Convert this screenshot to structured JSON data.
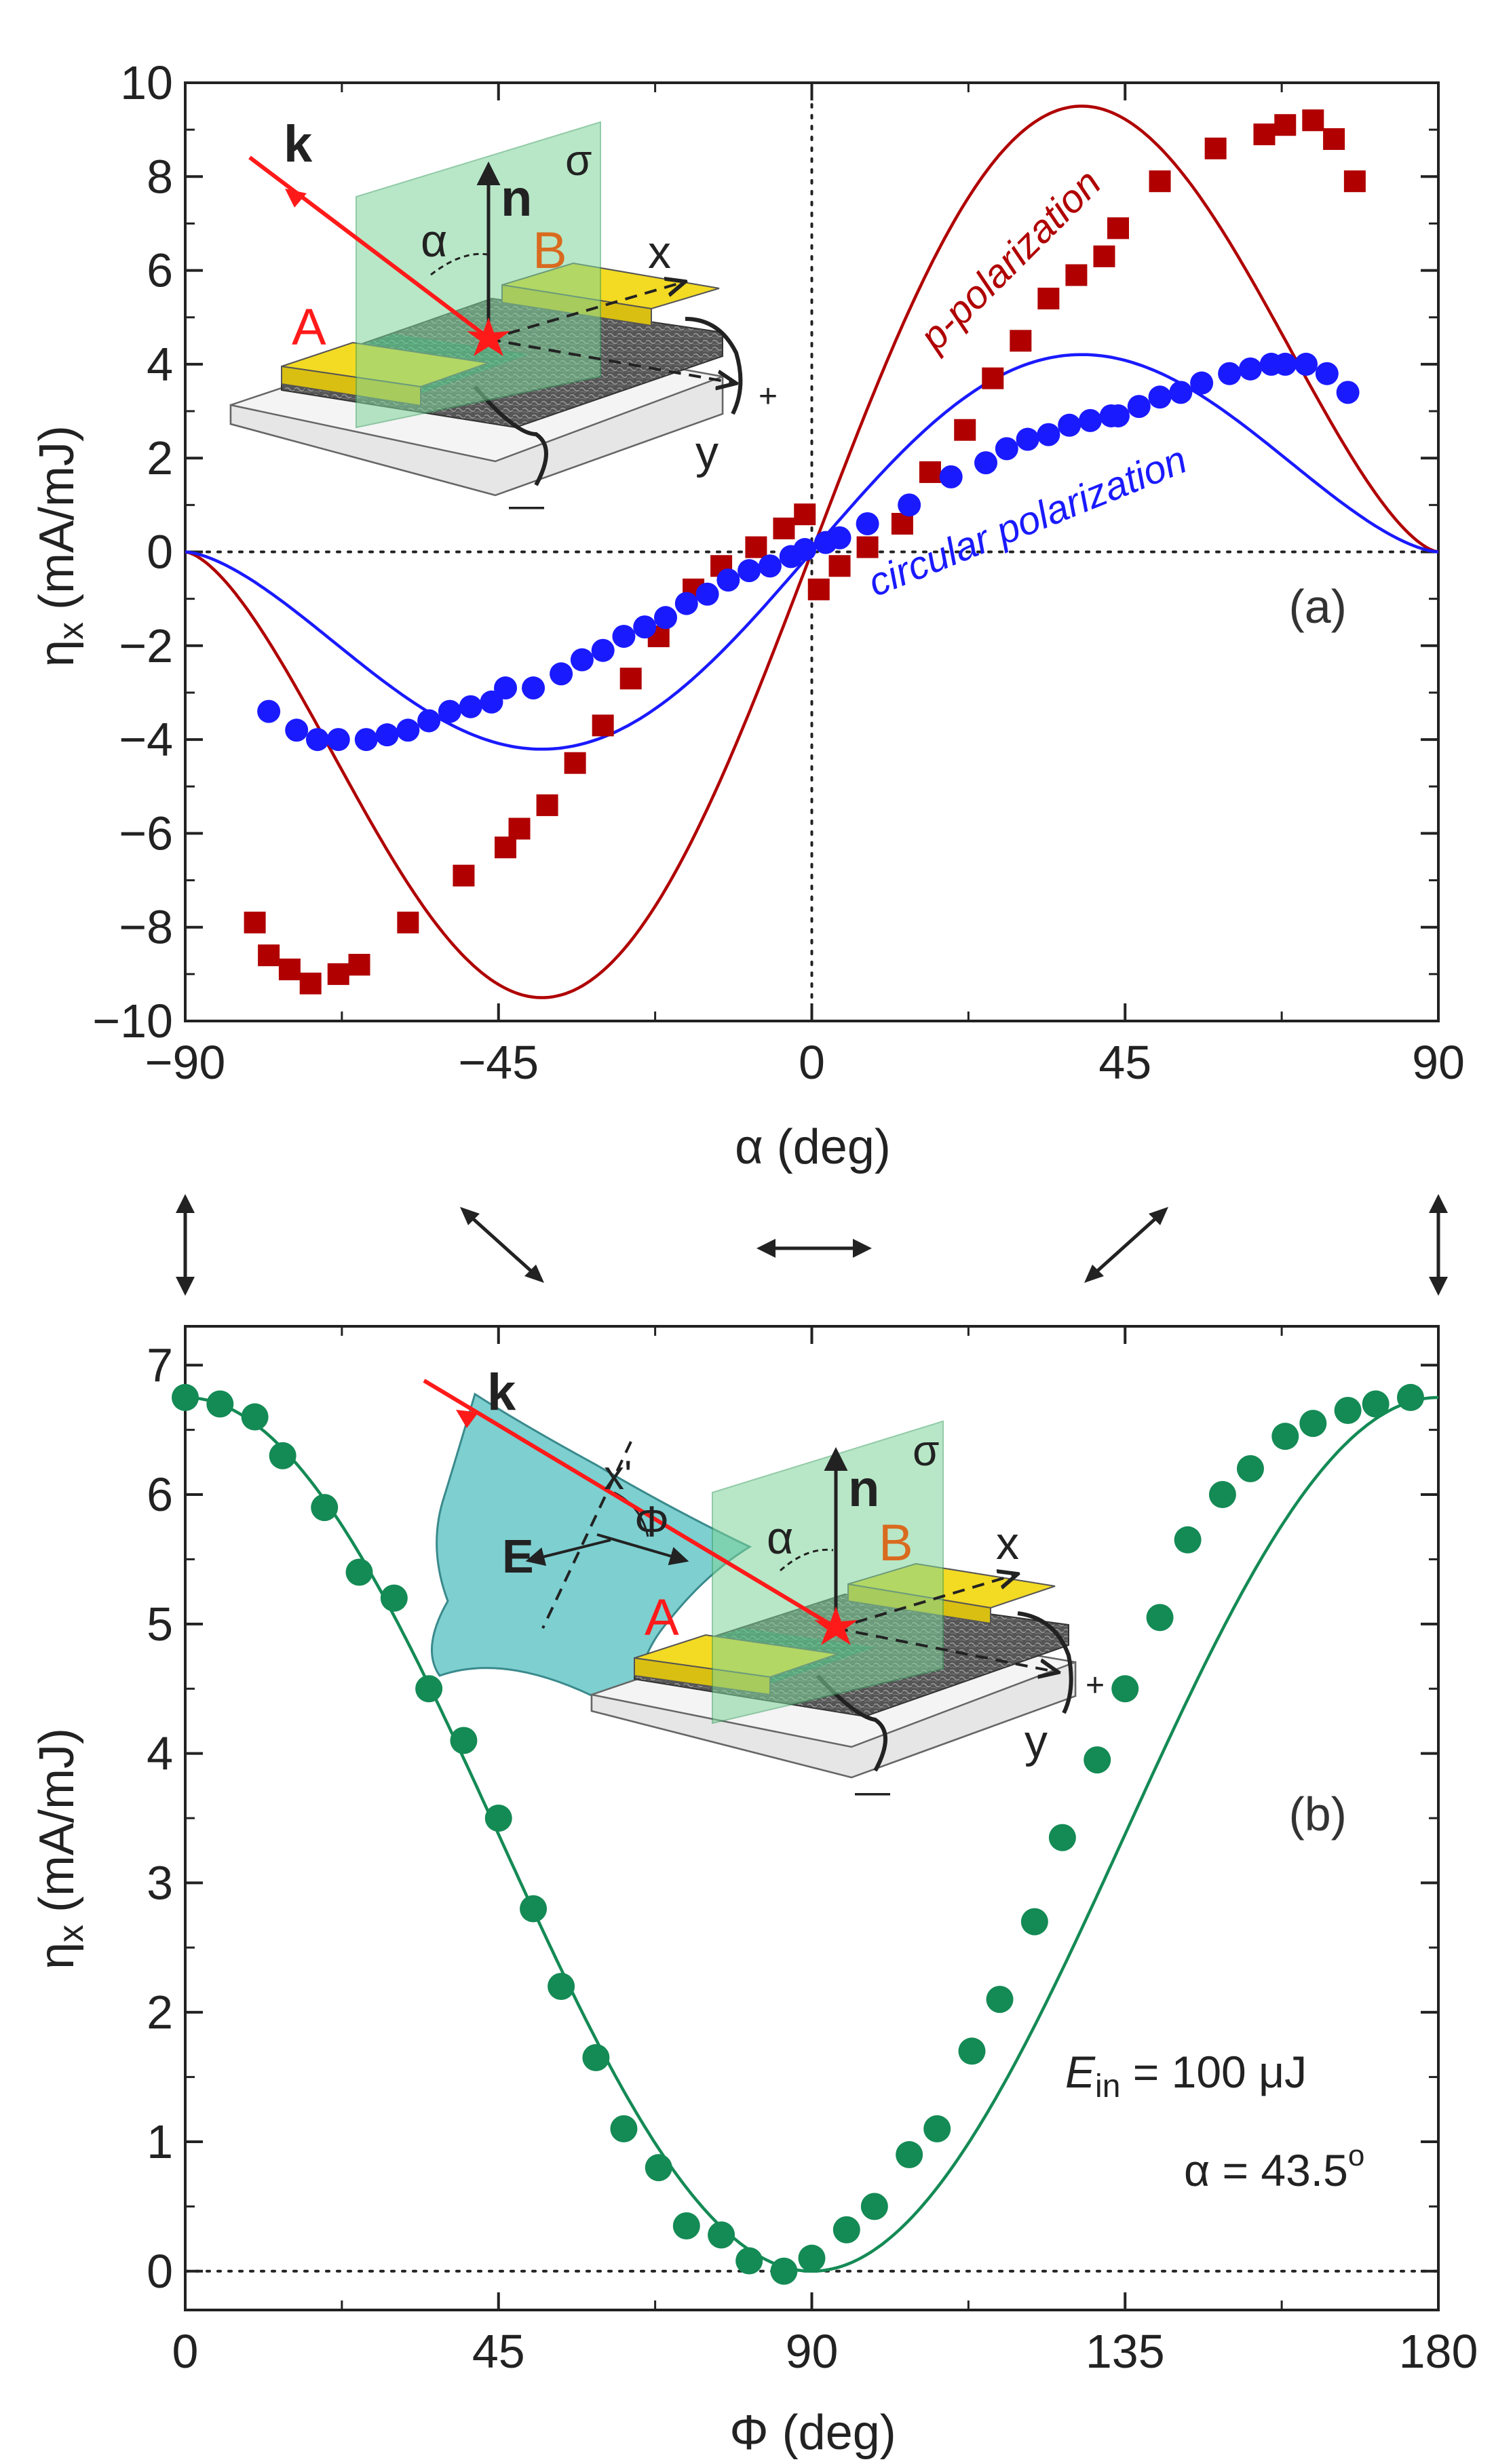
{
  "chart_data": [
    {
      "panel": "(a)",
      "type": "scatter",
      "xlabel": "α (deg)",
      "ylabel": "η",
      "ylabel_sub": "x",
      "ylabel_unit": "(mA/mJ)",
      "xlim": [
        -90,
        90
      ],
      "ylim": [
        -10,
        10
      ],
      "xticks": [
        -90,
        -45,
        0,
        45,
        90
      ],
      "xtick_labels": [
        "−90",
        "−45",
        "0",
        "45",
        "90"
      ],
      "yticks": [
        -10,
        -8,
        -6,
        -4,
        -2,
        0,
        2,
        4,
        6,
        8,
        10
      ],
      "ytick_labels": [
        "−10",
        "−8",
        "−6",
        "−4",
        "−2",
        "0",
        "2",
        "4",
        "6",
        "8",
        "10"
      ],
      "panel_label": "(a)",
      "series": [
        {
          "name": "p-polarization",
          "label_prefix": "p",
          "label_rest": "-polarization",
          "color": "#b00000",
          "marker": "square",
          "fit_amplitude": 9.15,
          "x": [
            -80,
            -78,
            -75,
            -72,
            -68,
            -65,
            -58,
            -50,
            -44,
            -42,
            -38,
            -34,
            -30,
            -26,
            -22,
            -17,
            -13,
            -8,
            -4,
            -1,
            1,
            4,
            8,
            13,
            17,
            22,
            26,
            30,
            34,
            38,
            42,
            44,
            50,
            58,
            65,
            68,
            72,
            75,
            78
          ],
          "y": [
            -7.9,
            -8.6,
            -8.9,
            -9.2,
            -9.0,
            -8.8,
            -7.9,
            -6.9,
            -6.3,
            -5.9,
            -5.4,
            -4.5,
            -3.7,
            -2.7,
            -1.8,
            -0.8,
            -0.3,
            0.1,
            0.5,
            0.8,
            -0.8,
            -0.3,
            0.1,
            0.6,
            1.7,
            2.6,
            3.7,
            4.5,
            5.4,
            5.9,
            6.3,
            6.9,
            7.9,
            8.6,
            8.9,
            9.1,
            9.2,
            8.8,
            7.9
          ]
        },
        {
          "name": "circular polarization",
          "color": "#1a1aff",
          "marker": "circle",
          "fit_amplitude": 4.05,
          "x": [
            -78,
            -74,
            -71,
            -68,
            -64,
            -61,
            -58,
            -55,
            -52,
            -49,
            -46,
            -44,
            -40,
            -36,
            -33,
            -30,
            -27,
            -24,
            -21,
            -18,
            -15,
            -12,
            -9,
            -6,
            -3,
            -1,
            2,
            4,
            8,
            14,
            20,
            25,
            28,
            31,
            34,
            37,
            40,
            43,
            44,
            47,
            50,
            53,
            56,
            60,
            63,
            66,
            68,
            71,
            74,
            77
          ],
          "y": [
            -3.4,
            -3.8,
            -4.0,
            -4.0,
            -4.0,
            -3.9,
            -3.8,
            -3.6,
            -3.4,
            -3.3,
            -3.2,
            -2.9,
            -2.9,
            -2.6,
            -2.3,
            -2.1,
            -1.8,
            -1.6,
            -1.4,
            -1.1,
            -0.9,
            -0.6,
            -0.4,
            -0.3,
            -0.1,
            0.05,
            0.2,
            0.3,
            0.6,
            1.0,
            1.6,
            1.9,
            2.2,
            2.4,
            2.5,
            2.7,
            2.8,
            2.9,
            2.9,
            3.1,
            3.3,
            3.4,
            3.6,
            3.8,
            3.9,
            4.0,
            4.0,
            4.0,
            3.8,
            3.4
          ]
        }
      ],
      "inset": {
        "k": "k",
        "n": "n",
        "sigma": "σ",
        "alpha": "α",
        "A": "A",
        "B": "B",
        "x": "x",
        "y": "y",
        "plus": "+",
        "minus": "—"
      }
    },
    {
      "panel": "(b)",
      "type": "scatter",
      "xlabel": "Φ (deg)",
      "ylabel": "η",
      "ylabel_sub": "x",
      "ylabel_unit": "(mA/mJ)",
      "xlim": [
        0,
        180
      ],
      "ylim": [
        -0.3,
        7.3
      ],
      "xticks": [
        0,
        45,
        90,
        135,
        180
      ],
      "xtick_labels": [
        "0",
        "45",
        "90",
        "135",
        "180"
      ],
      "yticks": [
        0,
        1,
        2,
        3,
        4,
        5,
        6,
        7
      ],
      "ytick_labels": [
        "0",
        "1",
        "2",
        "3",
        "4",
        "5",
        "6",
        "7"
      ],
      "panel_label": "(b)",
      "annotation_E": "E",
      "annotation_E_sub": "in",
      "annotation_E_rest": " = 100 μJ",
      "annotation_alpha": "α = 43.5",
      "annotation_alpha_deg": "o",
      "series": [
        {
          "name": "data",
          "color": "#148a55",
          "marker": "circle",
          "fit_amplitude": 6.75,
          "x": [
            0,
            5,
            10,
            14,
            20,
            25,
            30,
            35,
            40,
            45,
            50,
            54,
            59,
            63,
            68,
            72,
            77,
            81,
            86,
            90,
            95,
            99,
            104,
            108,
            113,
            117,
            122,
            126,
            131,
            135,
            140,
            144,
            149,
            153,
            158,
            162,
            167,
            171,
            176
          ],
          "y": [
            6.75,
            6.7,
            6.6,
            6.3,
            5.9,
            5.4,
            5.2,
            4.5,
            4.1,
            3.5,
            2.8,
            2.2,
            1.65,
            1.1,
            0.8,
            0.35,
            0.28,
            0.08,
            0.0,
            0.1,
            0.32,
            0.5,
            0.9,
            1.1,
            1.7,
            2.1,
            2.7,
            3.35,
            3.95,
            4.5,
            5.05,
            5.65,
            6.0,
            6.2,
            6.45,
            6.55,
            6.65,
            6.7,
            6.75
          ]
        }
      ],
      "inset": {
        "k": "k",
        "n": "n",
        "sigma": "σ",
        "alpha": "α",
        "A": "A",
        "B": "B",
        "x": "x",
        "y": "y",
        "plus": "+",
        "minus": "—",
        "E": "E",
        "x_prime": "x'",
        "phi": "Φ"
      }
    }
  ],
  "colors": {
    "p_series": "#b00000",
    "circular_series": "#1a1aff",
    "b_series": "#148a55",
    "laser": "#ff1a1a",
    "plane": "#7fd59a",
    "polarizer": "#7ecfd0",
    "electrode": "#f3da23",
    "label_A": "#ff1a1a",
    "label_B": "#d96a1e"
  },
  "arrows_between": [
    "vertical",
    "diagonal-down",
    "horizontal",
    "diagonal-up",
    "vertical"
  ]
}
